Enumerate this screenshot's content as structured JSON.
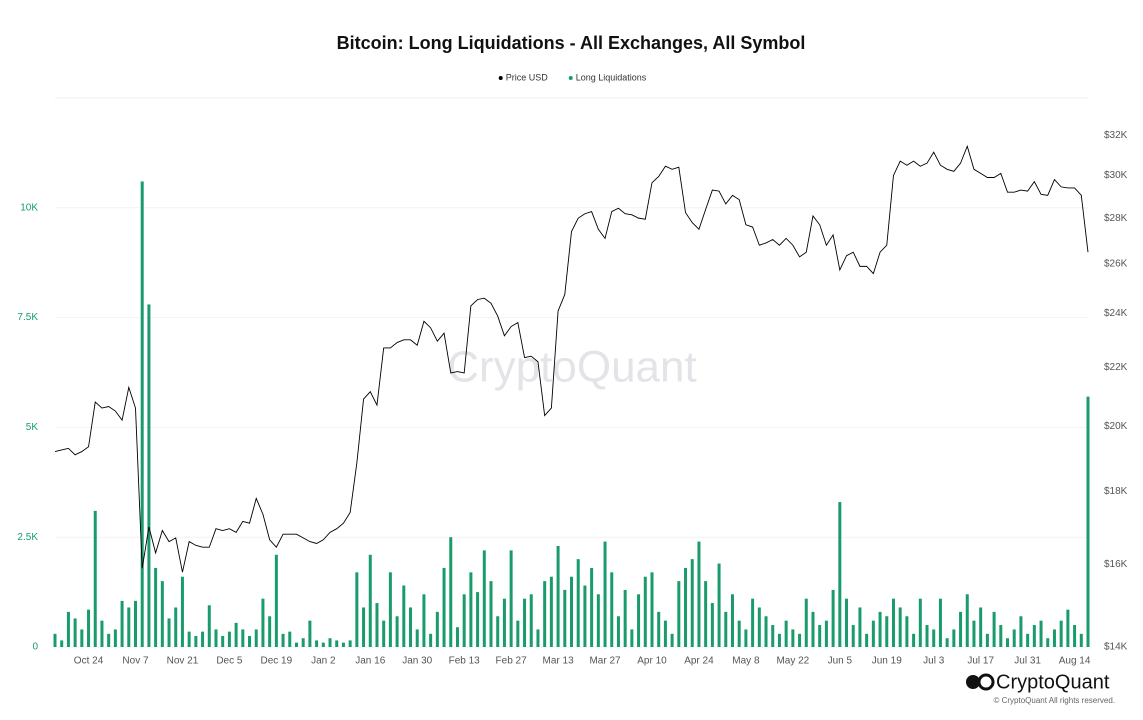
{
  "chart_data": {
    "type": "combo",
    "title": "Bitcoin: Long Liquidations - All Exchanges, All Symbol",
    "watermark": "CryptoQuant",
    "footer": {
      "brand": "CryptoQuant",
      "copyright": "© CryptoQuant All rights reserved."
    },
    "categories": [
      null,
      null,
      null,
      null,
      null,
      "Oct 24",
      null,
      null,
      null,
      null,
      null,
      null,
      "Nov 7",
      null,
      null,
      null,
      null,
      null,
      null,
      "Nov 21",
      null,
      null,
      null,
      null,
      null,
      null,
      "Dec 5",
      null,
      null,
      null,
      null,
      null,
      null,
      "Dec 19",
      null,
      null,
      null,
      null,
      null,
      null,
      "Jan 2",
      null,
      null,
      null,
      null,
      null,
      null,
      "Jan 16",
      null,
      null,
      null,
      null,
      null,
      null,
      "Jan 30",
      null,
      null,
      null,
      null,
      null,
      null,
      "Feb 13",
      null,
      null,
      null,
      null,
      null,
      null,
      "Feb 27",
      null,
      null,
      null,
      null,
      null,
      null,
      "Mar 13",
      null,
      null,
      null,
      null,
      null,
      null,
      "Mar 27",
      null,
      null,
      null,
      null,
      null,
      null,
      "Apr 10",
      null,
      null,
      null,
      null,
      null,
      null,
      "Apr 24",
      null,
      null,
      null,
      null,
      null,
      null,
      "May 8",
      null,
      null,
      null,
      null,
      null,
      null,
      "May 22",
      null,
      null,
      null,
      null,
      null,
      null,
      "Jun 5",
      null,
      null,
      null,
      null,
      null,
      null,
      "Jun 19",
      null,
      null,
      null,
      null,
      null,
      null,
      "Jul 3",
      null,
      null,
      null,
      null,
      null,
      null,
      "Jul 17",
      null,
      null,
      null,
      null,
      null,
      null,
      "Jul 31",
      null,
      null,
      null,
      null,
      null,
      null,
      "Aug 14",
      null,
      null
    ],
    "series": [
      {
        "name": "Price USD",
        "type": "line",
        "color": "#000000",
        "axis": "y2",
        "values": [
          19200,
          19250,
          19300,
          19100,
          19200,
          19350,
          20800,
          20600,
          20650,
          20500,
          20200,
          21300,
          20600,
          15900,
          17000,
          16300,
          16900,
          16600,
          16700,
          15800,
          16600,
          16500,
          16450,
          16450,
          16950,
          16900,
          16950,
          16850,
          17150,
          17100,
          17800,
          17350,
          16650,
          16450,
          16800,
          16800,
          16800,
          16700,
          16600,
          16550,
          16650,
          16850,
          16950,
          17100,
          17400,
          18850,
          20900,
          21150,
          20700,
          22700,
          22700,
          22900,
          23000,
          23000,
          22800,
          23700,
          23450,
          22950,
          23250,
          21800,
          21850,
          21800,
          24300,
          24550,
          24600,
          24400,
          23900,
          23150,
          23500,
          23650,
          22350,
          22400,
          22200,
          20350,
          20600,
          24100,
          24750,
          27400,
          28000,
          28200,
          28300,
          27500,
          27100,
          28300,
          28450,
          28200,
          28150,
          28000,
          27950,
          29650,
          29950,
          30450,
          30300,
          30400,
          28250,
          27800,
          27500,
          28400,
          29300,
          29250,
          28650,
          29050,
          28850,
          27700,
          27600,
          26800,
          26900,
          27050,
          26800,
          27100,
          26800,
          26300,
          26500,
          28100,
          27700,
          26800,
          27250,
          25750,
          26350,
          26500,
          25900,
          25900,
          25600,
          26500,
          26800,
          30000,
          30700,
          30500,
          30700,
          30450,
          30600,
          31150,
          30500,
          30300,
          30200,
          30600,
          31450,
          30300,
          30100,
          29900,
          29900,
          30100,
          29200,
          29200,
          29300,
          29250,
          29700,
          29100,
          29050,
          29800,
          29450,
          29400,
          29400,
          29050,
          26500
        ]
      },
      {
        "name": "Long Liquidations",
        "type": "bar",
        "color": "#1a9b6c",
        "values": [
          300,
          150,
          800,
          650,
          400,
          850,
          3100,
          600,
          300,
          400,
          1050,
          900,
          1050,
          10600,
          7800,
          1800,
          1500,
          650,
          900,
          1600,
          350,
          250,
          350,
          950,
          400,
          250,
          350,
          550,
          400,
          250,
          400,
          1100,
          700,
          2100,
          300,
          350,
          100,
          200,
          600,
          150,
          100,
          200,
          150,
          100,
          150,
          1700,
          900,
          2100,
          1000,
          600,
          1700,
          700,
          1400,
          900,
          400,
          1200,
          300,
          800,
          1800,
          2500,
          450,
          1200,
          1700,
          1250,
          2200,
          1500,
          700,
          1100,
          2200,
          600,
          1100,
          1200,
          400,
          1500,
          1600,
          2300,
          1300,
          1600,
          2000,
          1400,
          1800,
          1200,
          2400,
          1700,
          700,
          1300,
          400,
          1200,
          1600,
          1700,
          800,
          600,
          300,
          1500,
          1800,
          2000,
          2400,
          1500,
          1000,
          1900,
          800,
          1200,
          600,
          400,
          1100,
          900,
          700,
          500,
          300,
          600,
          400,
          300,
          1100,
          800,
          500,
          600,
          1300,
          3300,
          1100,
          500,
          900,
          300,
          600,
          800,
          700,
          1100,
          900,
          700,
          300,
          1100,
          500,
          400,
          1100,
          200,
          400,
          800,
          1200,
          600,
          900,
          300,
          800,
          500,
          200,
          400,
          700,
          300,
          500,
          600,
          200,
          400,
          600,
          850,
          500,
          300,
          5700
        ]
      }
    ],
    "ylim": [
      0,
      12500
    ],
    "yticks": [
      0,
      {
        "value": 2500,
        "label": "2.5K"
      },
      {
        "value": 5000,
        "label": "5K"
      },
      {
        "value": 7500,
        "label": "7.5K"
      },
      {
        "value": 10000,
        "label": "10K"
      }
    ],
    "y2lim": [
      14000,
      34000
    ],
    "y2scale": "log",
    "y2ticks": [
      {
        "value": 14000,
        "label": "$14K"
      },
      {
        "value": 16000,
        "label": "$16K"
      },
      {
        "value": 18000,
        "label": "$18K"
      },
      {
        "value": 20000,
        "label": "$20K"
      },
      {
        "value": 22000,
        "label": "$22K"
      },
      {
        "value": 24000,
        "label": "$24K"
      },
      {
        "value": 26000,
        "label": "$26K"
      },
      {
        "value": 28000,
        "label": "$28K"
      },
      {
        "value": 30000,
        "label": "$30K"
      },
      {
        "value": 32000,
        "label": "$32K"
      }
    ],
    "grid": true,
    "legend": "top"
  }
}
